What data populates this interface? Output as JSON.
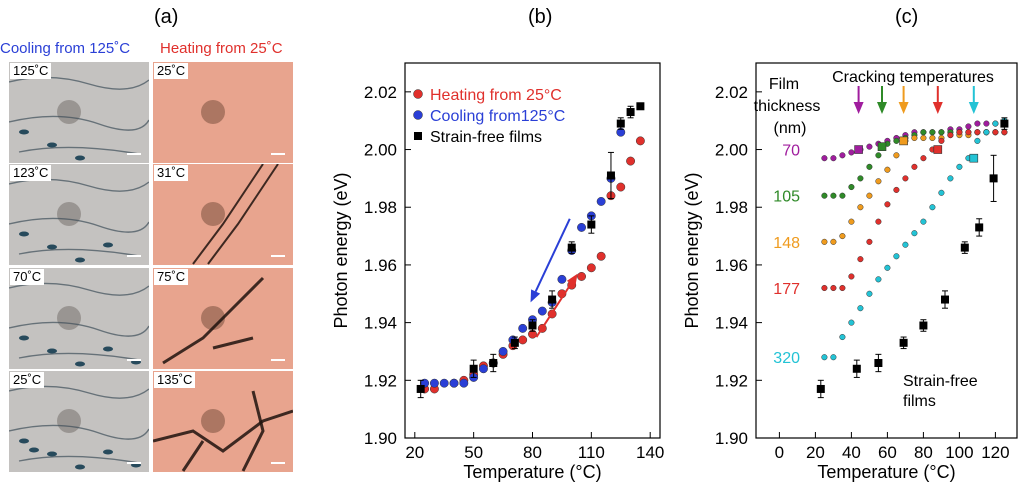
{
  "panel_labels": {
    "a": "(a)",
    "b": "(b)",
    "c": "(c)"
  },
  "panel_a": {
    "cooling_title": "Cooling from 125˚C",
    "heating_title": "Heating from 25˚C",
    "cooling_images": [
      {
        "label": "125˚C"
      },
      {
        "label": "123˚C"
      },
      {
        "label": "70˚C"
      },
      {
        "label": "25˚C"
      }
    ],
    "heating_images": [
      {
        "label": "25˚C"
      },
      {
        "label": "31˚C"
      },
      {
        "label": "75˚C"
      },
      {
        "label": "135˚C"
      }
    ],
    "colors": {
      "cooling_bg": "#c4c2c0",
      "heating_bg": "#e8a48e",
      "crack_dark": "#1e130e",
      "cooling_title": "#2a3fd6",
      "heating_title": "#e0302c"
    }
  },
  "chart_data": [
    {
      "type": "scatter",
      "panel": "(b)",
      "xlabel": "Temperature (°C)",
      "ylabel": "Photon energy (eV)",
      "xlim": [
        15,
        145
      ],
      "ylim": [
        1.9,
        2.03
      ],
      "xticks": [
        20,
        50,
        80,
        110,
        140
      ],
      "yticks": [
        1.9,
        1.92,
        1.94,
        1.96,
        1.98,
        2.0,
        2.02
      ],
      "ytick_labels": [
        "1.90",
        "1.92",
        "1.94",
        "1.96",
        "1.98",
        "2.00",
        "2.02"
      ],
      "legend_position": "top-left",
      "grid": false,
      "series": [
        {
          "name": "Heating from 25°C",
          "color": "#e0302c",
          "marker": "circle",
          "x": [
            25,
            30,
            40,
            45,
            50,
            55,
            60,
            65,
            70,
            75,
            80,
            85,
            90,
            95,
            100,
            105,
            110,
            115,
            120,
            125,
            130,
            135
          ],
          "y": [
            1.917,
            1.917,
            1.919,
            1.92,
            1.922,
            1.925,
            1.926,
            1.929,
            1.932,
            1.934,
            1.936,
            1.938,
            1.943,
            1.95,
            1.953,
            1.956,
            1.959,
            1.963,
            1.984,
            1.987,
            1.996,
            2.003
          ]
        },
        {
          "name": "Cooling from125°C",
          "color": "#2a3fd6",
          "marker": "circle",
          "x": [
            25,
            30,
            35,
            40,
            45,
            50,
            55,
            60,
            65,
            70,
            75,
            80,
            85,
            90,
            95,
            100,
            105,
            110,
            115,
            120,
            125
          ],
          "y": [
            1.919,
            1.919,
            1.919,
            1.919,
            1.919,
            1.921,
            1.924,
            1.926,
            1.93,
            1.934,
            1.938,
            1.941,
            1.944,
            1.947,
            1.955,
            1.965,
            1.973,
            1.977,
            1.982,
            1.99,
            2.006
          ]
        },
        {
          "name": "Strain-free films",
          "color": "#000000",
          "marker": "square",
          "x": [
            23,
            50,
            60,
            71,
            80,
            90,
            100,
            110,
            120,
            125,
            130,
            135
          ],
          "y": [
            1.917,
            1.924,
            1.926,
            1.933,
            1.939,
            1.948,
            1.966,
            1.974,
            1.991,
            2.009,
            2.013,
            2.015
          ],
          "yerr": [
            0.003,
            0.003,
            0.003,
            0.002,
            0.002,
            0.003,
            0.002,
            0.003,
            0.008,
            0.002,
            0.002,
            0.001
          ]
        }
      ],
      "annotations": [
        {
          "kind": "arrow",
          "color": "#2a3fd6",
          "from": [
            99,
            1.976
          ],
          "to": [
            79,
            1.947
          ]
        },
        {
          "kind": "arrow",
          "color": "#e0302c",
          "from": [
            82,
            1.935
          ],
          "to": [
            103,
            1.957
          ]
        }
      ]
    },
    {
      "type": "scatter",
      "panel": "(c)",
      "xlabel": "Temperature (°C)",
      "ylabel": "Photon energy (eV)",
      "xlim": [
        -13,
        132
      ],
      "ylim": [
        1.9,
        2.03
      ],
      "xticks": [
        0,
        20,
        40,
        60,
        80,
        100,
        120
      ],
      "yticks": [
        1.9,
        1.92,
        1.94,
        1.96,
        1.98,
        2.0,
        2.02
      ],
      "ytick_labels": [
        "1.90",
        "1.92",
        "1.94",
        "1.96",
        "1.98",
        "2.00",
        "2.02"
      ],
      "grid": false,
      "header_left": "Film thickness (nm)",
      "header_right": "Cracking temperatures",
      "series": [
        {
          "name": "70",
          "color": "#a01d9e",
          "x": [
            25,
            30,
            35,
            40,
            45,
            50,
            55,
            60,
            65,
            70,
            75,
            80,
            85,
            90,
            95,
            100,
            105,
            110,
            115,
            120,
            125
          ],
          "y": [
            1.997,
            1.997,
            1.998,
            1.999,
            2.0,
            2.001,
            2.002,
            2.003,
            2.004,
            2.005,
            2.006,
            2.006,
            2.006,
            2.006,
            2.007,
            2.007,
            2.008,
            2.009,
            2.009,
            2.009,
            2.009
          ]
        },
        {
          "name": "105",
          "color": "#2f8a28",
          "x": [
            25,
            30,
            35,
            40,
            45,
            50,
            55,
            60,
            65,
            70,
            75,
            80,
            85,
            90,
            95,
            100,
            105,
            110,
            115,
            120,
            125
          ],
          "y": [
            1.984,
            1.984,
            1.984,
            1.987,
            1.99,
            1.994,
            1.998,
            2.002,
            2.003,
            2.004,
            2.005,
            2.006,
            2.006,
            2.006,
            2.006,
            2.006,
            2.006,
            2.006,
            2.006,
            2.006,
            2.006
          ]
        },
        {
          "name": "148",
          "color": "#ef9b1e",
          "x": [
            25,
            30,
            35,
            40,
            45,
            50,
            55,
            60,
            65,
            70,
            75,
            80,
            85,
            90,
            95,
            100,
            105,
            110,
            115,
            120,
            125
          ],
          "y": [
            1.968,
            1.968,
            1.97,
            1.975,
            1.98,
            1.984,
            1.989,
            1.993,
            1.998,
            2.003,
            2.004,
            2.004,
            2.004,
            2.004,
            2.005,
            2.005,
            2.005,
            2.006,
            2.006,
            2.006,
            2.006
          ]
        },
        {
          "name": "177",
          "color": "#e0302c",
          "x": [
            25,
            30,
            35,
            40,
            45,
            50,
            55,
            60,
            65,
            70,
            75,
            80,
            85,
            90,
            95,
            100,
            105,
            110,
            115,
            120,
            125
          ],
          "y": [
            1.952,
            1.952,
            1.952,
            1.956,
            1.962,
            1.968,
            1.975,
            1.981,
            1.986,
            1.99,
            1.994,
            1.997,
            2.0,
            2.003,
            2.005,
            2.006,
            2.006,
            2.006,
            2.006,
            2.006,
            2.006
          ]
        },
        {
          "name": "320",
          "color": "#23c3d5",
          "x": [
            25,
            30,
            35,
            40,
            45,
            50,
            55,
            60,
            65,
            70,
            75,
            80,
            85,
            90,
            95,
            100,
            105,
            110,
            115,
            120,
            125
          ],
          "y": [
            1.928,
            1.928,
            1.935,
            1.94,
            1.945,
            1.95,
            1.955,
            1.959,
            1.963,
            1.967,
            1.971,
            1.975,
            1.98,
            1.985,
            1.99,
            1.994,
            1.997,
            2.003,
            2.006,
            2.009,
            2.01
          ]
        },
        {
          "name": "Strain-free films",
          "color": "#000000",
          "marker": "square",
          "x": [
            23,
            43,
            55,
            69,
            80,
            92,
            103,
            111,
            119,
            125
          ],
          "y": [
            1.917,
            1.924,
            1.926,
            1.933,
            1.939,
            1.948,
            1.966,
            1.973,
            1.99,
            2.009
          ],
          "yerr": [
            0.003,
            0.003,
            0.003,
            0.002,
            0.002,
            0.003,
            0.002,
            0.003,
            0.008,
            0.002
          ]
        }
      ],
      "cracking_markers": [
        {
          "color": "#a01d9e",
          "x": 44,
          "y": 2.0
        },
        {
          "color": "#2f8a28",
          "x": 57,
          "y": 2.001
        },
        {
          "color": "#ef9b1e",
          "x": 69,
          "y": 2.003
        },
        {
          "color": "#e0302c",
          "x": 88,
          "y": 2.0
        },
        {
          "color": "#23c3d5",
          "x": 108,
          "y": 1.997
        }
      ],
      "cracking_arrows": [
        {
          "color": "#a01d9e",
          "x": 44
        },
        {
          "color": "#2f8a28",
          "x": 57
        },
        {
          "color": "#ef9b1e",
          "x": 69
        },
        {
          "color": "#e0302c",
          "x": 88
        },
        {
          "color": "#23c3d5",
          "x": 108
        }
      ],
      "annotations": [
        {
          "text": "Strain-free films",
          "x": 45,
          "y": 1.92
        }
      ]
    }
  ]
}
